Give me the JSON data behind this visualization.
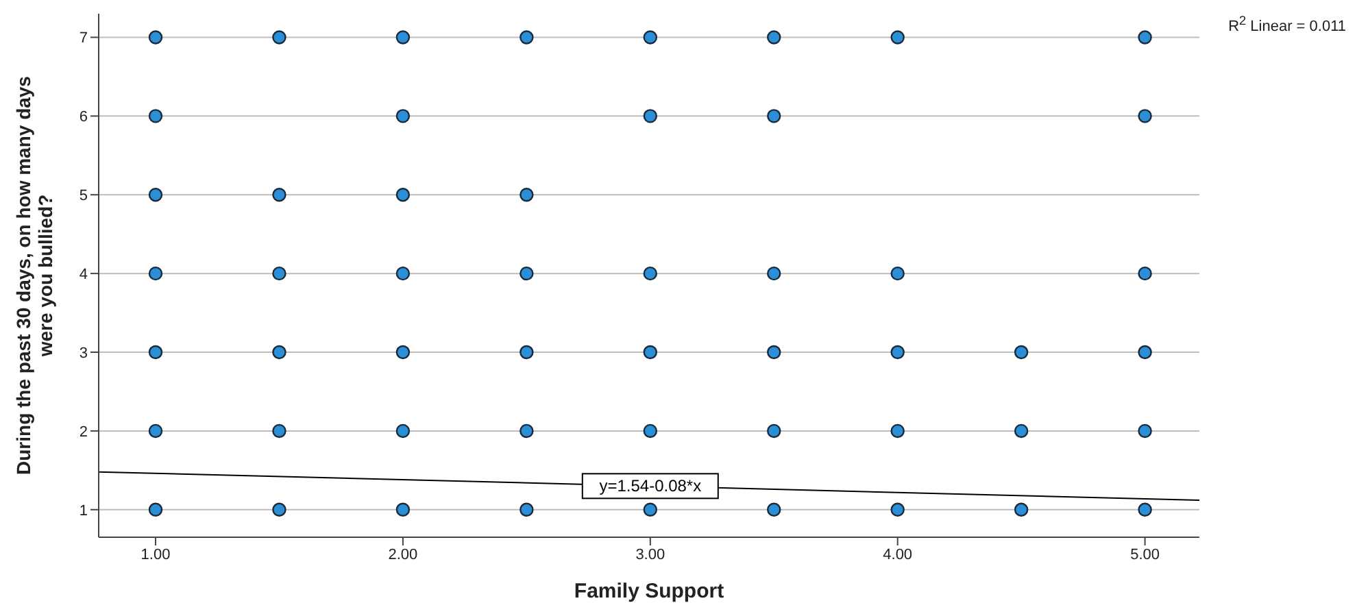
{
  "chart_data": {
    "type": "scatter",
    "xlabel": "Family Support",
    "ylabel": "During the past 30 days, on how many days were you bullied?",
    "xlim": [
      0.77,
      5.22
    ],
    "xticks": [
      {
        "value": 1,
        "label": "1.00"
      },
      {
        "value": 2,
        "label": "2.00"
      },
      {
        "value": 3,
        "label": "3.00"
      },
      {
        "value": 4,
        "label": "4.00"
      },
      {
        "value": 5,
        "label": "5.00"
      }
    ],
    "ylim": [
      0.65,
      7.3
    ],
    "yticks": [
      1,
      2,
      3,
      4,
      5,
      6,
      7
    ],
    "grid": "y",
    "marker": "circle",
    "series": [
      {
        "color": "#2a8fd6",
        "x": [
          1,
          1.5,
          2,
          2.5,
          3,
          3.5,
          4,
          5,
          1,
          2,
          3,
          3.5,
          5,
          1,
          1.5,
          2,
          2.5,
          1,
          1.5,
          2,
          2.5,
          3,
          3.5,
          4,
          5,
          1,
          1.5,
          2,
          2.5,
          3,
          3.5,
          4,
          4.5,
          5,
          1,
          1.5,
          2,
          2.5,
          3,
          3.5,
          4,
          4.5,
          5,
          1,
          1.5,
          2,
          2.5,
          3,
          3.5,
          4,
          4.5,
          5
        ],
        "values": [
          7,
          7,
          7,
          7,
          7,
          7,
          7,
          7,
          6,
          6,
          6,
          6,
          6,
          5,
          5,
          5,
          5,
          4,
          4,
          4,
          4,
          4,
          4,
          4,
          4,
          3,
          3,
          3,
          3,
          3,
          3,
          3,
          3,
          3,
          2,
          2,
          2,
          2,
          2,
          2,
          2,
          2,
          2,
          1,
          1,
          1,
          1,
          1,
          1,
          1,
          1,
          1
        ]
      },
      {
        "type": "line",
        "color": "#000000",
        "x": [
          0.77,
          5.22
        ],
        "values": [
          1.48,
          1.12
        ],
        "marker": "none"
      }
    ],
    "annotations": [
      "R$^{2}$ Linear = 0.011",
      {
        "text": "y=1.54-0.08*x",
        "x": 3,
        "y": 1.3
      }
    ]
  }
}
